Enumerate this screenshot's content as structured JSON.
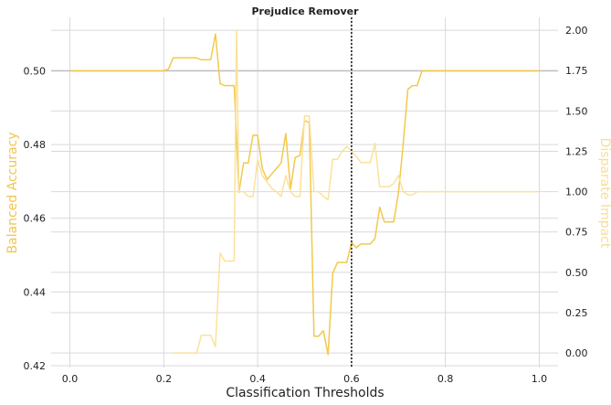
{
  "chart_data": {
    "type": "line",
    "title": "Prejudice Remover",
    "xlabel": "Classification Thresholds",
    "ylabel_left": "Balanced Accuracy",
    "ylabel_right": "Disparate Impact",
    "xlim": [
      -0.04,
      1.04
    ],
    "ylim_left": [
      0.4195,
      0.5145
    ],
    "ylim_right": [
      -0.09,
      2.08
    ],
    "x_ticks": [
      0.0,
      0.2,
      0.4,
      0.6,
      0.8,
      1.0
    ],
    "x_tick_labels": [
      "0.0",
      "0.2",
      "0.4",
      "0.6",
      "0.8",
      "1.0"
    ],
    "y_left_ticks": [
      0.42,
      0.44,
      0.46,
      0.48,
      0.5
    ],
    "y_left_tick_labels": [
      "0.42",
      "0.44",
      "0.46",
      "0.48",
      "0.50"
    ],
    "y_right_ticks": [
      0.0,
      0.25,
      0.5,
      0.75,
      1.0,
      1.25,
      1.5,
      1.75,
      2.0
    ],
    "y_right_tick_labels": [
      "0.00",
      "0.25",
      "0.50",
      "0.75",
      "1.00",
      "1.25",
      "1.50",
      "1.75",
      "2.00"
    ],
    "grid": true,
    "threshold_line_x": 0.6,
    "reference_line_left": 0.5,
    "colors": {
      "balanced_accuracy": "#F2C94C",
      "disparate_impact": "#FBE29A",
      "reference_line": "#c0c0c0",
      "threshold_line": "#111111",
      "grid": "#d9d9d9",
      "axis_title_color": "#F3C550",
      "right_axis_title_color": "#F8DE94"
    },
    "series": [
      {
        "axis": "left",
        "x": [
          0.0,
          0.02,
          0.04,
          0.06,
          0.08,
          0.1,
          0.12,
          0.14,
          0.16,
          0.18,
          0.2,
          0.21,
          0.22,
          0.24,
          0.26,
          0.27,
          0.28,
          0.3,
          0.31,
          0.32,
          0.33,
          0.34,
          0.35,
          0.36,
          0.37,
          0.38,
          0.39,
          0.4,
          0.41,
          0.42,
          0.43,
          0.44,
          0.45,
          0.46,
          0.47,
          0.48,
          0.49,
          0.5,
          0.51,
          0.52,
          0.53,
          0.54,
          0.55,
          0.56,
          0.57,
          0.58,
          0.59,
          0.6,
          0.61,
          0.62,
          0.63,
          0.64,
          0.65,
          0.66,
          0.67,
          0.68,
          0.69,
          0.7,
          0.71,
          0.72,
          0.73,
          0.74,
          0.75,
          0.76,
          0.78,
          0.8,
          0.85,
          0.9,
          0.95,
          1.0
        ],
        "values": [
          0.5,
          0.5,
          0.5,
          0.5,
          0.5,
          0.5,
          0.5,
          0.5,
          0.5,
          0.5,
          0.5,
          0.5005,
          0.5035,
          0.5035,
          0.5035,
          0.5035,
          0.503,
          0.503,
          0.51,
          0.4965,
          0.496,
          0.496,
          0.496,
          0.467,
          0.475,
          0.475,
          0.4825,
          0.4825,
          0.4735,
          0.4705,
          0.472,
          0.4735,
          0.475,
          0.483,
          0.468,
          0.4765,
          0.477,
          0.4865,
          0.486,
          0.428,
          0.428,
          0.4295,
          0.423,
          0.445,
          0.448,
          0.448,
          0.448,
          0.4535,
          0.452,
          0.453,
          0.453,
          0.453,
          0.4545,
          0.463,
          0.459,
          0.459,
          0.459,
          0.467,
          0.48,
          0.495,
          0.496,
          0.496,
          0.5,
          0.5,
          0.5,
          0.5,
          0.5,
          0.5,
          0.5,
          0.5
        ]
      },
      {
        "axis": "right",
        "x": [
          0.22,
          0.24,
          0.26,
          0.27,
          0.28,
          0.3,
          0.31,
          0.32,
          0.33,
          0.34,
          0.35,
          0.355,
          0.36,
          0.37,
          0.38,
          0.39,
          0.4,
          0.41,
          0.42,
          0.43,
          0.44,
          0.45,
          0.46,
          0.47,
          0.48,
          0.49,
          0.5,
          0.51,
          0.52,
          0.53,
          0.54,
          0.55,
          0.56,
          0.57,
          0.58,
          0.59,
          0.6,
          0.61,
          0.62,
          0.63,
          0.64,
          0.65,
          0.66,
          0.67,
          0.68,
          0.69,
          0.7,
          0.71,
          0.72,
          0.73,
          0.74,
          0.75,
          0.76,
          0.78,
          0.8,
          0.85,
          0.9,
          0.95,
          1.0
        ],
        "values": [
          0.0,
          0.0,
          0.0,
          0.0,
          0.11,
          0.11,
          0.04,
          0.62,
          0.57,
          0.57,
          0.57,
          2.0,
          1.0,
          1.0,
          0.97,
          0.97,
          1.2,
          1.1,
          1.06,
          1.02,
          1.0,
          0.97,
          1.1,
          1.0,
          0.97,
          0.97,
          1.47,
          1.47,
          1.0,
          1.0,
          0.97,
          0.95,
          1.2,
          1.2,
          1.25,
          1.28,
          1.25,
          1.22,
          1.18,
          1.18,
          1.18,
          1.3,
          1.03,
          1.03,
          1.03,
          1.05,
          1.1,
          1.0,
          0.98,
          0.98,
          1.0,
          1.0,
          1.0,
          1.0,
          1.0,
          1.0,
          1.0,
          1.0,
          1.0
        ]
      }
    ]
  }
}
